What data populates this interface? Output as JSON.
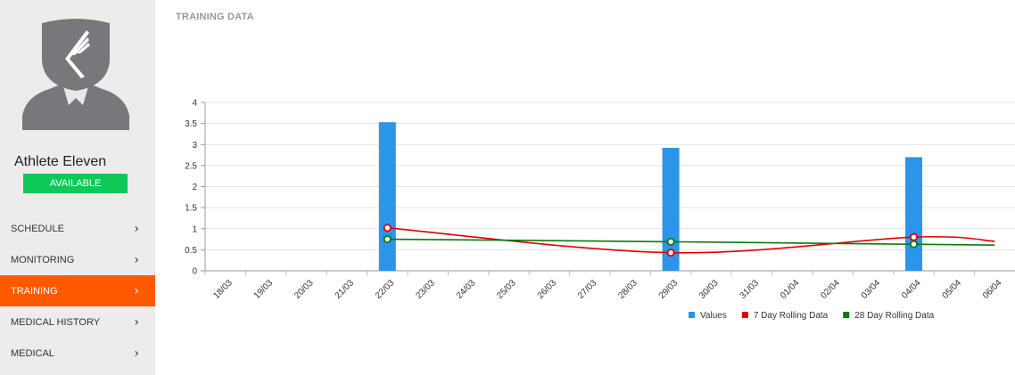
{
  "sidebar": {
    "athlete_name": "Athlete Eleven",
    "status": "AVAILABLE",
    "status_color": "#0ec957",
    "items": [
      {
        "label": "SCHEDULE",
        "active": false
      },
      {
        "label": "MONITORING",
        "active": false
      },
      {
        "label": "TRAINING",
        "active": true
      },
      {
        "label": "MEDICAL HISTORY",
        "active": false
      },
      {
        "label": "MEDICAL",
        "active": false
      }
    ],
    "active_color": "#ff5a00",
    "chevron_icon": "chevron-right-icon"
  },
  "main": {
    "title": "TRAINING DATA"
  },
  "chart_data": {
    "type": "bar",
    "categories": [
      "18/03",
      "19/03",
      "20/03",
      "21/03",
      "22/03",
      "23/03",
      "24/03",
      "25/03",
      "26/03",
      "27/03",
      "28/03",
      "29/03",
      "30/03",
      "31/03",
      "01/04",
      "02/04",
      "03/04",
      "04/04",
      "05/04",
      "06/04"
    ],
    "ylim": [
      0,
      4
    ],
    "yticks": [
      "0",
      "0.5",
      "1",
      "1.5",
      "2",
      "2.5",
      "3",
      "3.5",
      "4"
    ],
    "grid": true,
    "legend_position": "bottom-right",
    "series": [
      {
        "name": "Values",
        "type": "bar",
        "color": "#2b95ea",
        "values": [
          null,
          null,
          null,
          null,
          3.53,
          null,
          null,
          null,
          null,
          null,
          null,
          2.92,
          null,
          null,
          null,
          null,
          null,
          2.7,
          null,
          null
        ]
      },
      {
        "name": "7 Day Rolling Data",
        "type": "line",
        "color": "#e00000",
        "values": [
          null,
          null,
          null,
          null,
          1.02,
          null,
          null,
          null,
          null,
          null,
          null,
          0.43,
          null,
          null,
          null,
          null,
          null,
          0.8,
          null,
          0.7
        ]
      },
      {
        "name": "28 Day Rolling Data",
        "type": "line",
        "color": "#0a7a0a",
        "values": [
          null,
          null,
          null,
          null,
          0.75,
          null,
          null,
          null,
          null,
          null,
          null,
          0.69,
          null,
          null,
          null,
          null,
          null,
          0.63,
          null,
          0.61
        ]
      }
    ]
  }
}
